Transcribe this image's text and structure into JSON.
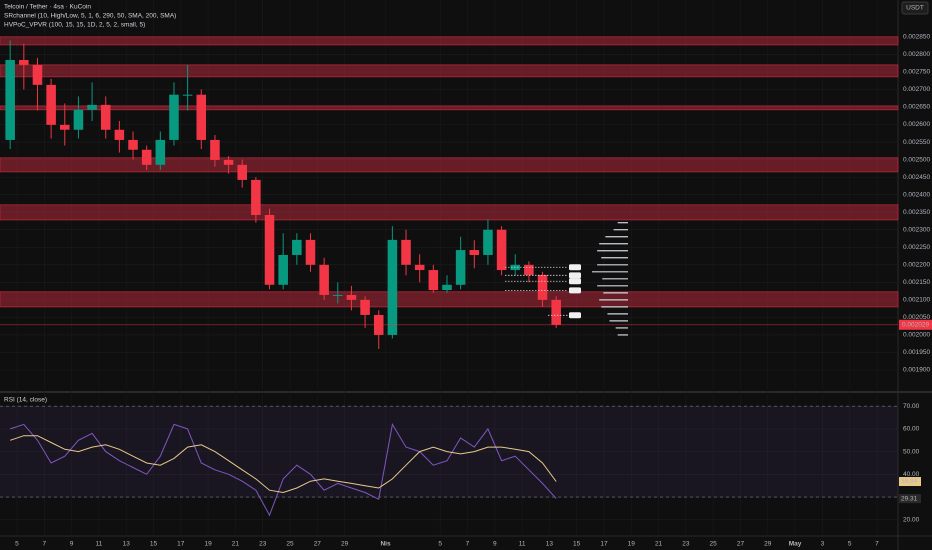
{
  "chart_data": [
    {
      "type": "candlestick",
      "title": "Telcoin / Tether · 4sa · KuCoin",
      "indicators": [
        "SRchannel (10, High/Low, 5, 1, 6, 290, 50, SMA, 200, SMA)",
        "HVPoC_VPVR (100, 15, 15, 1D, 2, 5, 2, small, 5)"
      ],
      "currency": "USDT",
      "x": [
        -0.5,
        0.5,
        1.5,
        2.5,
        3.5,
        4.5,
        5.5,
        6.5,
        7.5,
        8.5,
        9.5,
        10.5,
        11.5,
        12.5,
        13.5,
        14.5,
        15.5,
        16.5,
        17.5,
        18.5,
        19.5,
        20.5,
        21.5,
        22.5,
        23.5,
        24.5,
        25.5,
        26.5,
        27.5,
        28.5,
        29.5,
        30.5,
        31.5,
        32.5,
        33.5,
        34.5,
        35.5,
        36.5,
        37.5,
        38.5,
        39.5
      ],
      "ohlc": [
        [
          0.002556,
          0.00284,
          0.00253,
          0.002784
        ],
        [
          0.002784,
          0.00283,
          0.0027,
          0.00277
        ],
        [
          0.00277,
          0.00279,
          0.00264,
          0.002713
        ],
        [
          0.002713,
          0.00273,
          0.00256,
          0.002599
        ],
        [
          0.002599,
          0.00266,
          0.00254,
          0.002585
        ],
        [
          0.002585,
          0.00268,
          0.00256,
          0.002642
        ],
        [
          0.002642,
          0.00272,
          0.00261,
          0.002656
        ],
        [
          0.002656,
          0.00268,
          0.00256,
          0.002585
        ],
        [
          0.002585,
          0.00261,
          0.00252,
          0.002556
        ],
        [
          0.002556,
          0.00258,
          0.0025,
          0.002528
        ],
        [
          0.002528,
          0.00254,
          0.00247,
          0.002485
        ],
        [
          0.002485,
          0.00258,
          0.00247,
          0.002556
        ],
        [
          0.002556,
          0.00272,
          0.00254,
          0.002685
        ],
        [
          0.002685,
          0.00277,
          0.00264,
          0.002685
        ],
        [
          0.002685,
          0.0027,
          0.00253,
          0.002556
        ],
        [
          0.002556,
          0.00257,
          0.00248,
          0.002499
        ],
        [
          0.002499,
          0.00251,
          0.00246,
          0.002485
        ],
        [
          0.002485,
          0.0025,
          0.00242,
          0.002442
        ],
        [
          0.002442,
          0.00245,
          0.00232,
          0.002342
        ],
        [
          0.002342,
          0.00236,
          0.00213,
          0.002143
        ],
        [
          0.002143,
          0.00229,
          0.00213,
          0.002228
        ],
        [
          0.002228,
          0.00229,
          0.0022,
          0.002271
        ],
        [
          0.002271,
          0.00229,
          0.00218,
          0.0022
        ],
        [
          0.0022,
          0.00222,
          0.0021,
          0.002114
        ],
        [
          0.002114,
          0.00215,
          0.00209,
          0.002114
        ],
        [
          0.002114,
          0.00214,
          0.00207,
          0.0021
        ],
        [
          0.0021,
          0.00211,
          0.00202,
          0.002057
        ],
        [
          0.002057,
          0.00207,
          0.00196,
          0.002
        ],
        [
          0.002,
          0.00231,
          0.00199,
          0.002271
        ],
        [
          0.002271,
          0.0023,
          0.00217,
          0.0022
        ],
        [
          0.0022,
          0.00223,
          0.00215,
          0.002185
        ],
        [
          0.002185,
          0.0022,
          0.00212,
          0.002128
        ],
        [
          0.002128,
          0.00217,
          0.00212,
          0.002143
        ],
        [
          0.002143,
          0.00228,
          0.00213,
          0.002242
        ],
        [
          0.002242,
          0.00227,
          0.00219,
          0.002228
        ],
        [
          0.002228,
          0.00233,
          0.0022,
          0.0023
        ],
        [
          0.0023,
          0.00231,
          0.00217,
          0.002185
        ],
        [
          0.002185,
          0.00223,
          0.00217,
          0.0022
        ],
        [
          0.0022,
          0.00221,
          0.00215,
          0.002171
        ],
        [
          0.002171,
          0.00218,
          0.00208,
          0.0021
        ],
        [
          0.0021,
          0.00211,
          0.00202,
          0.002029
        ]
      ],
      "up_color": "#089981",
      "down_color": "#f23645",
      "zones": [
        [
          0.00285,
          0.002827
        ],
        [
          0.00277,
          0.002736
        ],
        [
          0.002653,
          0.002642
        ],
        [
          0.002505,
          0.002465
        ],
        [
          0.002371,
          0.002328
        ],
        [
          0.002123,
          0.00208
        ]
      ],
      "zone_color": "#b2283a",
      "hvpoc_levels": [
        0.002193,
        0.00217,
        0.002153,
        0.002127,
        0.002056
      ],
      "volume_profile": {
        "prices": [
          0.00232,
          0.0023,
          0.00228,
          0.00226,
          0.00224,
          0.00222,
          0.0022,
          0.00218,
          0.00216,
          0.00214,
          0.00212,
          0.0021,
          0.00208,
          0.00206,
          0.00204,
          0.00202,
          0.002
        ],
        "volumes": [
          10,
          14,
          22,
          28,
          30,
          26,
          30,
          35,
          25,
          30,
          24,
          28,
          26,
          20,
          18,
          12,
          10
        ]
      },
      "xlim": [
        -1.245,
        64.54
      ],
      "ylim": [
        0.001843,
        0.002955
      ],
      "xticks": [
        {
          "value": 0,
          "label": "5"
        },
        {
          "value": 2,
          "label": "7"
        },
        {
          "value": 4,
          "label": "9"
        },
        {
          "value": 6,
          "label": "11"
        },
        {
          "value": 8,
          "label": "13"
        },
        {
          "value": 10,
          "label": "15"
        },
        {
          "value": 12,
          "label": "17"
        },
        {
          "value": 14,
          "label": "19"
        },
        {
          "value": 16,
          "label": "21"
        },
        {
          "value": 18,
          "label": "23"
        },
        {
          "value": 20,
          "label": "25"
        },
        {
          "value": 22,
          "label": "27"
        },
        {
          "value": 24,
          "label": "29"
        },
        {
          "value": 27,
          "label": "Nis"
        },
        {
          "value": 31,
          "label": "5"
        },
        {
          "value": 33,
          "label": "7"
        },
        {
          "value": 35,
          "label": "9"
        },
        {
          "value": 37,
          "label": "11"
        },
        {
          "value": 39,
          "label": "13"
        },
        {
          "value": 41,
          "label": "15"
        },
        {
          "value": 43,
          "label": "17"
        },
        {
          "value": 45,
          "label": "19"
        },
        {
          "value": 47,
          "label": "21"
        },
        {
          "value": 49,
          "label": "23"
        },
        {
          "value": 51,
          "label": "25"
        },
        {
          "value": 53,
          "label": "27"
        },
        {
          "value": 55,
          "label": "29"
        },
        {
          "value": 57,
          "label": "May"
        },
        {
          "value": 59,
          "label": "3"
        },
        {
          "value": 61,
          "label": "5"
        },
        {
          "value": 63,
          "label": "7"
        }
      ],
      "yticks": [
        {
          "value": 0.0019,
          "label": "0.001900"
        },
        {
          "value": 0.00195,
          "label": "0.001950"
        },
        {
          "value": 0.002,
          "label": "0.002000"
        },
        {
          "value": 0.00205,
          "label": "0.002050"
        },
        {
          "value": 0.0021,
          "label": "0.002100"
        },
        {
          "value": 0.00215,
          "label": "0.002150"
        },
        {
          "value": 0.0022,
          "label": "0.002200"
        },
        {
          "value": 0.00225,
          "label": "0.002250"
        },
        {
          "value": 0.0023,
          "label": "0.002300"
        },
        {
          "value": 0.00235,
          "label": "0.002350"
        },
        {
          "value": 0.0024,
          "label": "0.002400"
        },
        {
          "value": 0.00245,
          "label": "0.002450"
        },
        {
          "value": 0.0025,
          "label": "0.002500"
        },
        {
          "value": 0.00255,
          "label": "0.002550"
        },
        {
          "value": 0.0026,
          "label": "0.002600"
        },
        {
          "value": 0.00265,
          "label": "0.002650"
        },
        {
          "value": 0.0027,
          "label": "0.002700"
        },
        {
          "value": 0.00275,
          "label": "0.002750"
        },
        {
          "value": 0.0028,
          "label": "0.002800"
        },
        {
          "value": 0.00285,
          "label": "0.002850"
        }
      ]
    },
    {
      "type": "line",
      "title": "RSI (14, close)",
      "x": [
        -0.5,
        0.5,
        1.5,
        2.5,
        3.5,
        4.5,
        5.5,
        6.5,
        7.5,
        8.5,
        9.5,
        10.5,
        11.5,
        12.5,
        13.5,
        14.5,
        15.5,
        16.5,
        17.5,
        18.5,
        19.5,
        20.5,
        21.5,
        22.5,
        23.5,
        24.5,
        25.5,
        26.5,
        27.5,
        28.5,
        29.5,
        30.5,
        31.5,
        32.5,
        33.5,
        34.5,
        35.5,
        36.5,
        37.5,
        38.5,
        39.5
      ],
      "series": [
        {
          "color": "#7e57c2",
          "values": [
            60,
            62,
            55,
            45,
            48,
            55,
            58,
            50,
            46,
            43,
            40,
            48,
            62,
            60,
            45,
            42,
            40,
            37,
            33,
            22,
            38,
            44,
            40,
            33,
            36,
            34,
            32,
            29,
            62,
            52,
            50,
            44,
            46,
            56,
            52,
            60,
            46,
            48,
            42,
            36,
            29.31
          ]
        },
        {
          "color": "#e8c98a",
          "values": [
            55,
            57,
            57,
            54,
            51,
            50,
            52,
            53,
            51,
            48,
            45,
            44,
            47,
            52,
            53,
            50,
            46,
            42,
            38,
            33,
            32,
            34,
            37,
            38,
            37,
            36,
            35,
            34,
            38,
            44,
            50,
            52,
            50,
            49,
            50,
            52,
            52,
            51,
            50,
            45,
            36.84
          ]
        }
      ],
      "band": [
        30,
        70
      ],
      "band_color": "#7e57c2",
      "xlim": [
        -1.245,
        64.54
      ],
      "ylim": [
        13.3,
        75.8
      ],
      "yticks": [
        {
          "value": 20,
          "label": "20.00"
        },
        {
          "value": 30,
          "label": "30.00"
        },
        {
          "value": 40,
          "label": "40.00"
        },
        {
          "value": 50,
          "label": "50.00"
        },
        {
          "value": 60,
          "label": "60.00"
        },
        {
          "value": 70,
          "label": "70.00"
        }
      ]
    }
  ]
}
